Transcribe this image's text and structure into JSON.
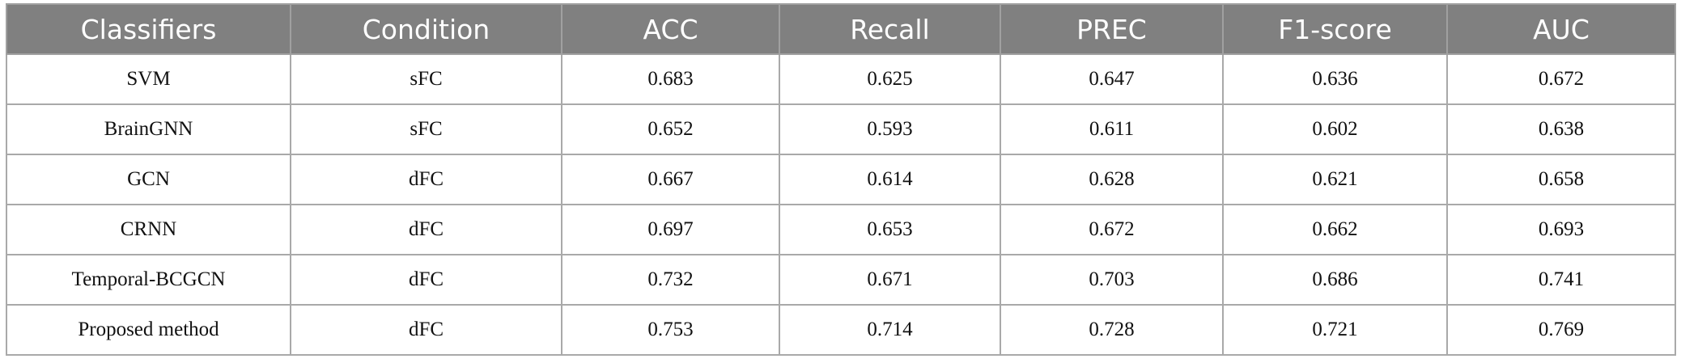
{
  "table": {
    "header": [
      "Classifiers",
      "Condition",
      "ACC",
      "Recall",
      "PREC",
      "F1-score",
      "AUC"
    ],
    "rows": [
      [
        "SVM",
        "sFC",
        "0.683",
        "0.625",
        "0.647",
        "0.636",
        "0.672"
      ],
      [
        "BrainGNN",
        "sFC",
        "0.652",
        "0.593",
        "0.611",
        "0.602",
        "0.638"
      ],
      [
        "GCN",
        "dFC",
        "0.667",
        "0.614",
        "0.628",
        "0.621",
        "0.658"
      ],
      [
        "CRNN",
        "dFC",
        "0.697",
        "0.653",
        "0.672",
        "0.662",
        "0.693"
      ],
      [
        "Temporal-BCGCN",
        "dFC",
        "0.732",
        "0.671",
        "0.703",
        "0.686",
        "0.741"
      ],
      [
        "Proposed method",
        "dFC",
        "0.753",
        "0.714",
        "0.728",
        "0.721",
        "0.769"
      ]
    ]
  }
}
